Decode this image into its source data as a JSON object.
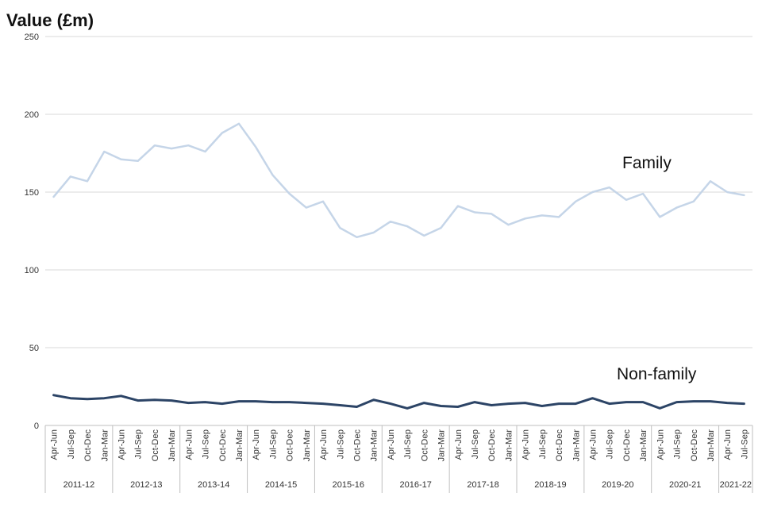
{
  "chart_data": {
    "type": "line",
    "title": "",
    "ylabel": "Value (£m)",
    "xlabel": "",
    "ylim": [
      0,
      250
    ],
    "yticks": [
      0,
      50,
      100,
      150,
      200,
      250
    ],
    "grid": true,
    "legend": "inline labels",
    "quarters": [
      "Apr-Jun",
      "Jul-Sep",
      "Oct-Dec",
      "Jan-Mar",
      "Apr-Jun",
      "Jul-Sep",
      "Oct-Dec",
      "Jan-Mar",
      "Apr-Jun",
      "Jul-Sep",
      "Oct-Dec",
      "Jan-Mar",
      "Apr-Jun",
      "Jul-Sep",
      "Oct-Dec",
      "Jan-Mar",
      "Apr-Jun",
      "Jul-Sep",
      "Oct-Dec",
      "Jan-Mar",
      "Apr-Jun",
      "Jul-Sep",
      "Oct-Dec",
      "Jan-Mar",
      "Apr-Jun",
      "Jul-Sep",
      "Oct-Dec",
      "Jan-Mar",
      "Apr-Jun",
      "Jul-Sep",
      "Oct-Dec",
      "Jan-Mar",
      "Apr-Jun",
      "Jul-Sep",
      "Oct-Dec",
      "Jan-Mar",
      "Apr-Jun",
      "Jul-Sep",
      "Oct-Dec",
      "Jan-Mar",
      "Apr-Jun",
      "Jul-Sep"
    ],
    "years": [
      {
        "label": "2011-12",
        "count": 4
      },
      {
        "label": "2012-13",
        "count": 4
      },
      {
        "label": "2013-14",
        "count": 4
      },
      {
        "label": "2014-15",
        "count": 4
      },
      {
        "label": "2015-16",
        "count": 4
      },
      {
        "label": "2016-17",
        "count": 4
      },
      {
        "label": "2017-18",
        "count": 4
      },
      {
        "label": "2018-19",
        "count": 4
      },
      {
        "label": "2019-20",
        "count": 4
      },
      {
        "label": "2020-21",
        "count": 4
      },
      {
        "label": "2021-22",
        "count": 2
      }
    ],
    "series": [
      {
        "name": "Family",
        "color": "#c5d5e8",
        "values": [
          147,
          160,
          157,
          176,
          171,
          170,
          180,
          178,
          180,
          176,
          188,
          194,
          179,
          161,
          149,
          140,
          144,
          127,
          121,
          124,
          131,
          128,
          122,
          127,
          141,
          137,
          136,
          129,
          133,
          135,
          134,
          144,
          150,
          153,
          145,
          149,
          134,
          140,
          144,
          157,
          150,
          148
        ]
      },
      {
        "name": "Non-family",
        "color": "#2c4466",
        "values": [
          19.5,
          17.5,
          17,
          17.5,
          19,
          16,
          16.5,
          16,
          14.5,
          15,
          14,
          15.5,
          15.5,
          15,
          15,
          14.5,
          14,
          13,
          12,
          16.5,
          14,
          11,
          14.5,
          12.5,
          12,
          15,
          13,
          14,
          14.5,
          12.5,
          14,
          14,
          17.5,
          14,
          15,
          15,
          11,
          15,
          15.5,
          15.5,
          14.5,
          14
        ]
      }
    ]
  }
}
